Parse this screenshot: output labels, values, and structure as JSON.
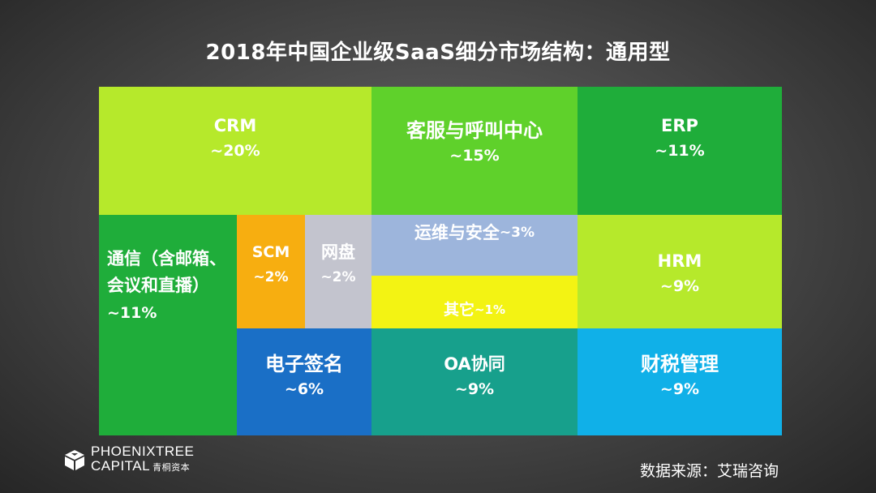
{
  "title": "2018年中国企业级SaaS细分市场结构：通用型",
  "chart_data": {
    "type": "treemap",
    "title": "2018年中国企业级SaaS细分市场结构：通用型",
    "items": [
      {
        "name": "CRM",
        "share": "~20%",
        "color": "#b6e92b"
      },
      {
        "name": "客服与呼叫中心",
        "share": "~15%",
        "color": "#5fd12b"
      },
      {
        "name": "ERP",
        "share": "~11%",
        "color": "#1fad3a"
      },
      {
        "name": "通信（含邮箱、会议和直播）",
        "share": "~11%",
        "color": "#1fad3a"
      },
      {
        "name": "SCM",
        "share": "~2%",
        "color": "#f7ae10"
      },
      {
        "name": "网盘",
        "share": "~2%",
        "color": "#c3c4ce"
      },
      {
        "name": "运维与安全",
        "share": "~3%",
        "color": "#9db5dc"
      },
      {
        "name": "其它",
        "share": "~1%",
        "color": "#f3f313"
      },
      {
        "name": "HRM",
        "share": "~9%",
        "color": "#b6e92b"
      },
      {
        "name": "电子签名",
        "share": "~6%",
        "color": "#1a6fc6"
      },
      {
        "name": "OA协同",
        "share": "~9%",
        "color": "#17a08c"
      },
      {
        "name": "财税管理",
        "share": "~9%",
        "color": "#10b0e8"
      }
    ]
  },
  "logo": {
    "line1": "PHOENIXTREE",
    "line2": "CAPITAL",
    "line2_cn": "青桐资本"
  },
  "source": "数据来源：艾瑞咨询"
}
